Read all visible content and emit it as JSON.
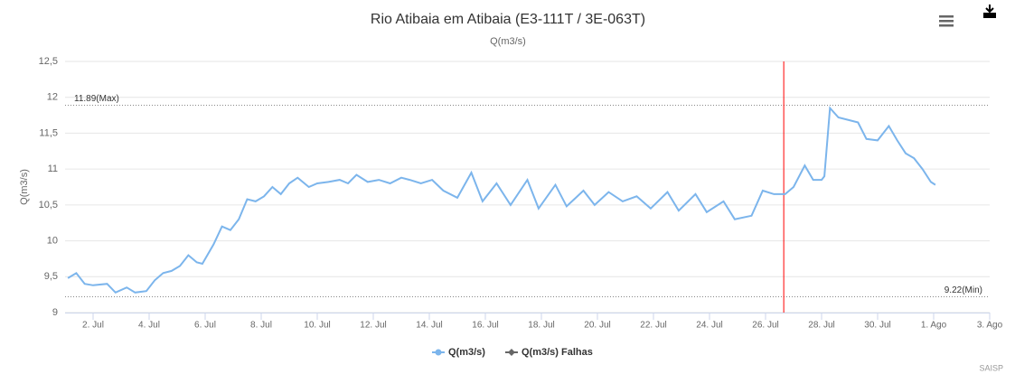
{
  "chart_data": {
    "type": "line",
    "title": "Rio Atibaia em Atibaia (E3-111T / 3E-063T)",
    "subtitle": "Q(m3/s)",
    "y_label": "Q(m3/s)",
    "credits": "SAISP",
    "xlim": [
      1,
      34
    ],
    "xticks": [
      {
        "value": 2,
        "label": "2. Jul"
      },
      {
        "value": 4,
        "label": "4. Jul"
      },
      {
        "value": 6,
        "label": "6. Jul"
      },
      {
        "value": 8,
        "label": "8. Jul"
      },
      {
        "value": 10,
        "label": "10. Jul"
      },
      {
        "value": 12,
        "label": "12. Jul"
      },
      {
        "value": 14,
        "label": "14. Jul"
      },
      {
        "value": 16,
        "label": "16. Jul"
      },
      {
        "value": 18,
        "label": "18. Jul"
      },
      {
        "value": 20,
        "label": "20. Jul"
      },
      {
        "value": 22,
        "label": "22. Jul"
      },
      {
        "value": 24,
        "label": "24. Jul"
      },
      {
        "value": 26,
        "label": "26. Jul"
      },
      {
        "value": 28,
        "label": "28. Jul"
      },
      {
        "value": 30,
        "label": "30. Jul"
      },
      {
        "value": 32,
        "label": "1. Ago"
      },
      {
        "value": 34,
        "label": "3. Ago"
      }
    ],
    "ylim": [
      9,
      12.5
    ],
    "yticks": [
      9,
      {
        "value": 9.5,
        "label": "9,5"
      },
      10,
      {
        "value": 10.5,
        "label": "10,5"
      },
      11,
      {
        "value": 11.5,
        "label": "11,5"
      },
      12,
      {
        "value": 12.5,
        "label": "12,5"
      }
    ],
    "grid": true,
    "plot_lines": [
      {
        "value": 11.89,
        "label": "11.89(Max)"
      },
      {
        "value": 9.22,
        "label": "9.22(Min)"
      }
    ],
    "x_plot_line": {
      "value": 26.65,
      "color": "#ff0000"
    },
    "series": [
      {
        "name": "Q(m3/s)",
        "color": "#7cb5ec",
        "x": [
          1.1,
          1.4,
          1.7,
          2.0,
          2.5,
          2.8,
          3.2,
          3.5,
          3.9,
          4.2,
          4.5,
          4.8,
          5.1,
          5.4,
          5.7,
          5.9,
          6.3,
          6.6,
          6.9,
          7.2,
          7.5,
          7.8,
          8.1,
          8.4,
          8.7,
          9.0,
          9.3,
          9.7,
          10.0,
          10.4,
          10.8,
          11.1,
          11.4,
          11.8,
          12.2,
          12.6,
          13.0,
          13.3,
          13.7,
          14.1,
          14.5,
          15.0,
          15.5,
          15.9,
          16.4,
          16.9,
          17.5,
          17.9,
          18.5,
          18.9,
          19.5,
          19.9,
          20.4,
          20.9,
          21.4,
          21.9,
          22.5,
          22.9,
          23.5,
          23.9,
          24.5,
          24.9,
          25.5,
          25.9,
          26.3,
          26.7,
          27.0,
          27.4,
          27.7,
          28.0,
          28.1,
          28.3,
          28.6,
          29.0,
          29.3,
          29.6,
          30.0,
          30.4,
          30.7,
          31.0,
          31.3,
          31.6,
          31.9,
          32.06
        ],
        "values": [
          9.48,
          9.55,
          9.4,
          9.38,
          9.4,
          9.28,
          9.35,
          9.28,
          9.3,
          9.45,
          9.55,
          9.58,
          9.65,
          9.8,
          9.7,
          9.68,
          9.95,
          10.2,
          10.15,
          10.3,
          10.58,
          10.55,
          10.62,
          10.75,
          10.65,
          10.8,
          10.88,
          10.75,
          10.8,
          10.82,
          10.85,
          10.8,
          10.92,
          10.82,
          10.85,
          10.8,
          10.88,
          10.85,
          10.8,
          10.85,
          10.7,
          10.6,
          10.95,
          10.55,
          10.8,
          10.5,
          10.85,
          10.45,
          10.78,
          10.48,
          10.7,
          10.5,
          10.68,
          10.55,
          10.62,
          10.45,
          10.68,
          10.42,
          10.65,
          10.4,
          10.55,
          10.3,
          10.35,
          10.7,
          10.65,
          10.65,
          10.75,
          11.05,
          10.85,
          10.85,
          10.9,
          11.85,
          11.72,
          11.68,
          11.65,
          11.42,
          11.4,
          11.6,
          11.4,
          11.22,
          11.15,
          11.0,
          10.82,
          10.78
        ]
      },
      {
        "name": "Q(m3/s) Falhas",
        "color": "#666666",
        "x": [],
        "values": []
      }
    ]
  }
}
